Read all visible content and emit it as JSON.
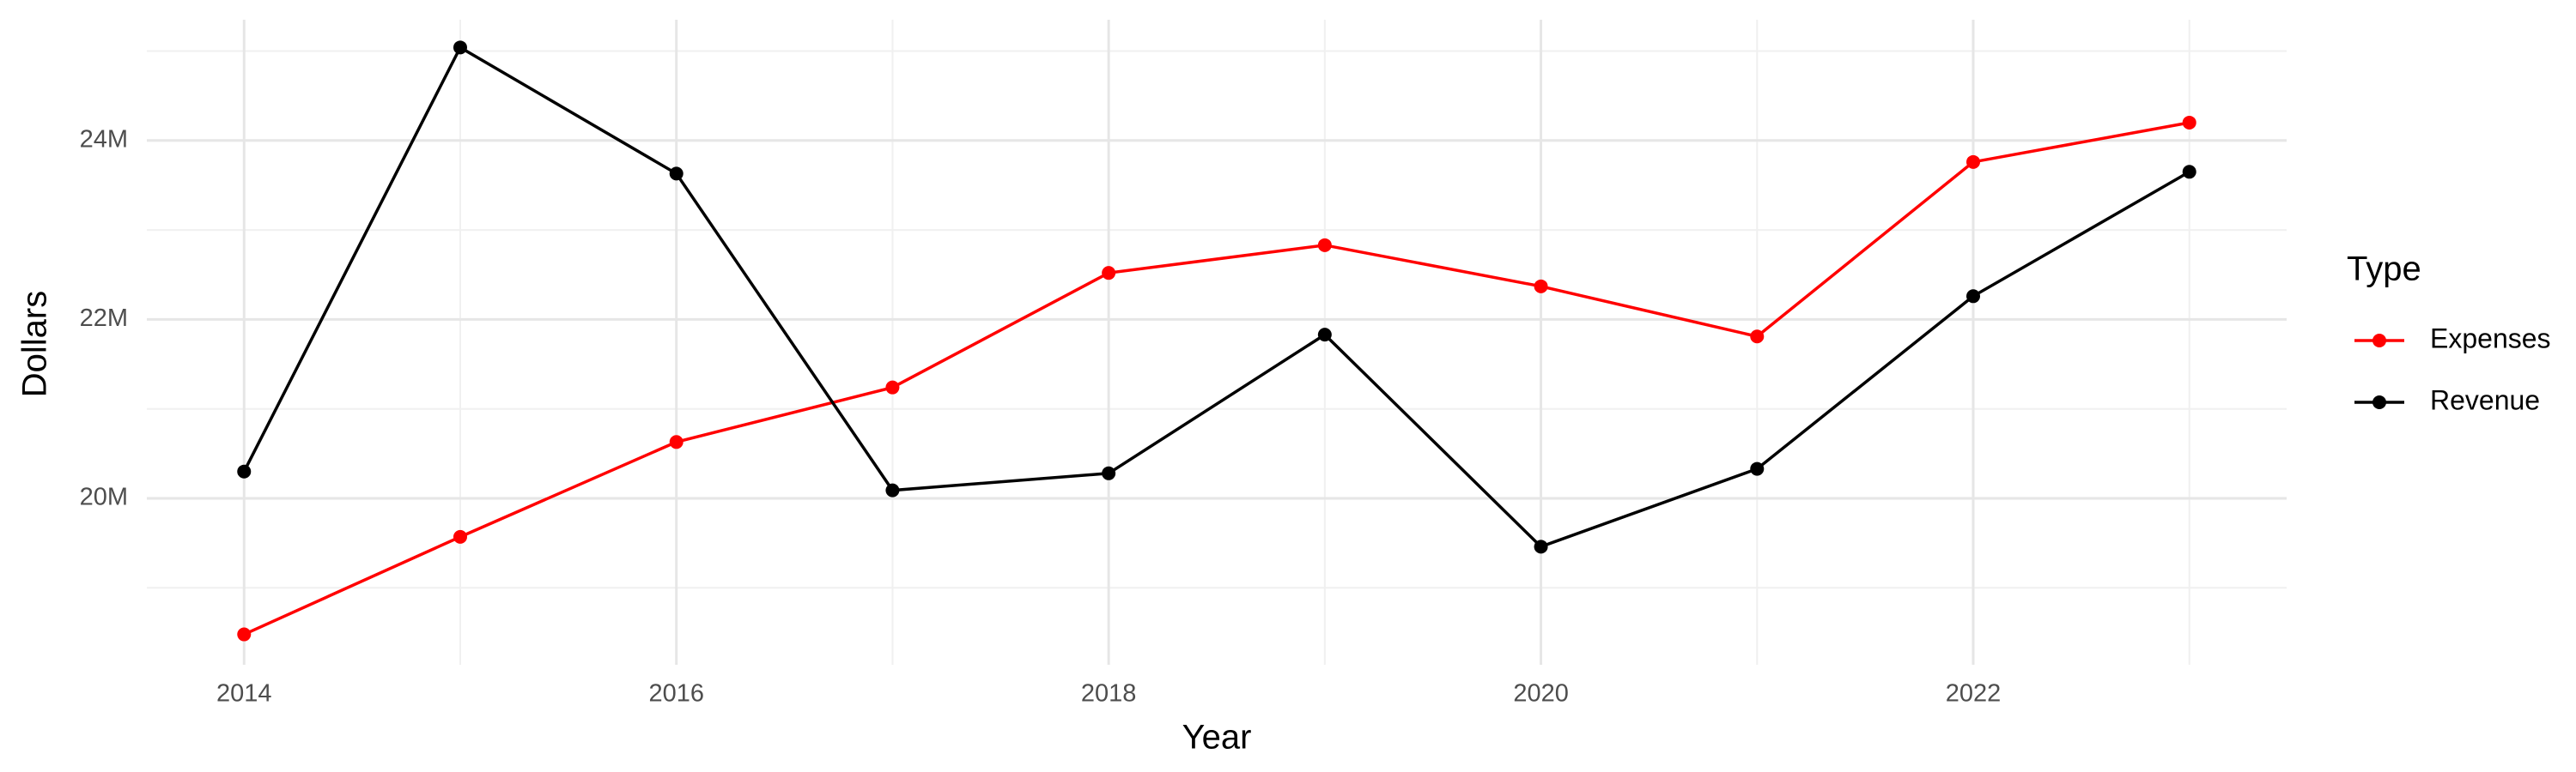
{
  "chart_data": {
    "type": "line",
    "x_label": "Year",
    "y_label": "Dollars",
    "legend_title": "Type",
    "x": [
      2014,
      2015,
      2016,
      2017,
      2018,
      2019,
      2020,
      2021,
      2022,
      2023
    ],
    "series": [
      {
        "name": "Expenses",
        "color": "#ff0000",
        "values": [
          18480000,
          19570000,
          20630000,
          21240000,
          22520000,
          22830000,
          22370000,
          21810000,
          23760000,
          24200000
        ]
      },
      {
        "name": "Revenue",
        "color": "#000000",
        "values": [
          20300000,
          25040000,
          23630000,
          20090000,
          20280000,
          21830000,
          19460000,
          20330000,
          22260000,
          23650000
        ]
      }
    ],
    "xlim": [
      2013.55,
      2023.45
    ],
    "xticks": [
      2014,
      2016,
      2018,
      2020,
      2022
    ],
    "ylim": [
      18140000,
      25350000
    ],
    "yticks": [
      {
        "value": 20000000,
        "label": "20M"
      },
      {
        "value": 22000000,
        "label": "22M"
      },
      {
        "value": 24000000,
        "label": "24M"
      }
    ],
    "grid": true,
    "legend_position": "right"
  }
}
